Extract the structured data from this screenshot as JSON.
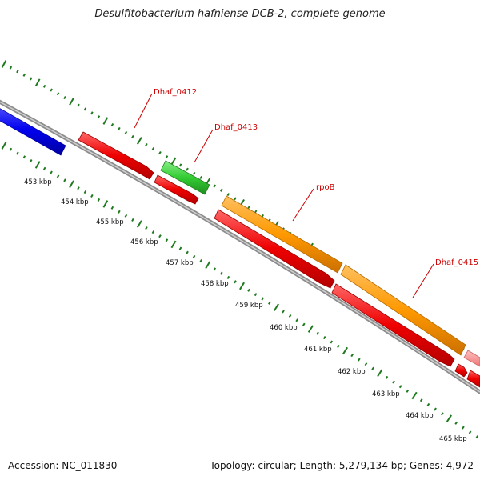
{
  "title": "Desulfitobacterium hafniense DCB-2, complete genome",
  "footer": {
    "accession": "Accession: NC_011830",
    "summary": "Topology: circular; Length: 5,279,134 bp; Genes: 4,972"
  },
  "colors": {
    "backbone": "#8c8c8c",
    "ticks": "#1f7a1f",
    "label": "#cc0000",
    "blue": "#0000ee",
    "red": "#ee0000",
    "green": "#33cc33",
    "orange": "#ff9900",
    "pink": "#ff8888"
  },
  "axis": {
    "tick_labels": [
      "453 kbp",
      "454 kbp",
      "455 kbp",
      "456 kbp",
      "457 kbp",
      "458 kbp",
      "459 kbp",
      "460 kbp",
      "461 kbp",
      "462 kbp",
      "463 kbp",
      "464 kbp",
      "465 kbp"
    ]
  },
  "gene_labels": [
    "Dhaf_0412",
    "Dhaf_0413",
    "rpoB",
    "Dhaf_0415"
  ]
}
